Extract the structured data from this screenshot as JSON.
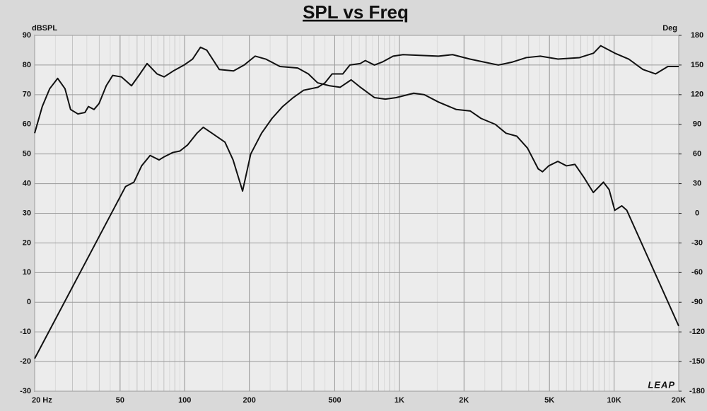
{
  "chart_data": {
    "type": "line",
    "title": "SPL vs Freq",
    "y_label": "dBSPL",
    "y2_label": "Deg",
    "logo": "LEAP",
    "xscale": "log",
    "xlim": [
      20,
      20000
    ],
    "xticks": [
      {
        "value": 20,
        "label": "20  Hz"
      },
      50,
      100,
      200,
      500,
      {
        "value": 1000,
        "label": "1K"
      },
      {
        "value": 2000,
        "label": "2K"
      },
      {
        "value": 5000,
        "label": "5K"
      },
      {
        "value": 10000,
        "label": "10K"
      },
      {
        "value": 20000,
        "label": "20K"
      }
    ],
    "ylim": [
      -30,
      90
    ],
    "yticks": [
      -30,
      -20,
      -10,
      0,
      10,
      20,
      30,
      40,
      50,
      60,
      70,
      80,
      90
    ],
    "y2lim": [
      -180,
      180
    ],
    "y2ticks": [
      -180,
      -150,
      -120,
      -90,
      -60,
      -30,
      0,
      30,
      60,
      90,
      120,
      150,
      180
    ],
    "grid": true,
    "series": [
      {
        "color": "#111111",
        "axis": "y",
        "x": [
          20,
          53,
          58,
          63,
          69,
          76,
          80,
          88,
          95,
          103,
          114,
          122,
          134,
          154,
          168,
          186,
          203,
          228,
          255,
          286,
          320,
          358,
          417,
          450,
          486,
          545,
          588,
          657,
          694,
          765,
          832,
          935,
          1040,
          1520,
          1770,
          2130,
          2480,
          2890,
          3360,
          3900,
          4530,
          5480,
          6900,
          8020,
          8660,
          10080,
          11700,
          13620,
          15600,
          17800,
          20000
        ],
        "values": [
          -19,
          39,
          40.5,
          46,
          49.5,
          48,
          49,
          50.5,
          51,
          53,
          57,
          59,
          57,
          54,
          48,
          37.5,
          50,
          57,
          62,
          66,
          69,
          71.5,
          72.5,
          74,
          77,
          77,
          80,
          80.5,
          81.5,
          80,
          81,
          83,
          83.5,
          83,
          83.5,
          82,
          81,
          80,
          81,
          82.5,
          83,
          82,
          82.5,
          84,
          86.5,
          84,
          82,
          78.5,
          77,
          79.5,
          79.5
        ]
      },
      {
        "color": "#111111",
        "axis": "y2",
        "x": [
          20,
          21.7,
          23.5,
          25.6,
          27.7,
          29.4,
          31.8,
          34.3,
          35.6,
          37.8,
          39.9,
          43.1,
          46.2,
          50.7,
          56.5,
          61.9,
          66.8,
          74.3,
          80.2,
          88.5,
          99.3,
          108.8,
          118.4,
          126.7,
          144.9,
          168.8,
          189.2,
          212.7,
          238.6,
          277.8,
          335.9,
          376.8,
          416,
          473,
          530,
          596,
          658,
          766,
          860,
          966,
          1166,
          1307,
          1522,
          1841,
          2140,
          2400,
          2795,
          3137,
          3523,
          3950,
          4430,
          4640,
          4960,
          5470,
          6000,
          6570,
          7250,
          8000,
          8920,
          9480,
          10070,
          10860,
          11460,
          20000
        ],
        "values": [
          81,
          108,
          126,
          136.5,
          126,
          105,
          100.5,
          102,
          108,
          105,
          111,
          129,
          139.5,
          138,
          129,
          141,
          151.5,
          141,
          138,
          144,
          150,
          156,
          168,
          165,
          145.5,
          144,
          150,
          159,
          156,
          148.5,
          147,
          141,
          132,
          129,
          127.5,
          135,
          127.5,
          117,
          115.5,
          117,
          121.5,
          120,
          112.5,
          105,
          103.5,
          96,
          90,
          81,
          78,
          66,
          45,
          42,
          48,
          52.5,
          48,
          49.5,
          36,
          21,
          31.5,
          24,
          3,
          7.5,
          3,
          -114
        ]
      }
    ]
  }
}
